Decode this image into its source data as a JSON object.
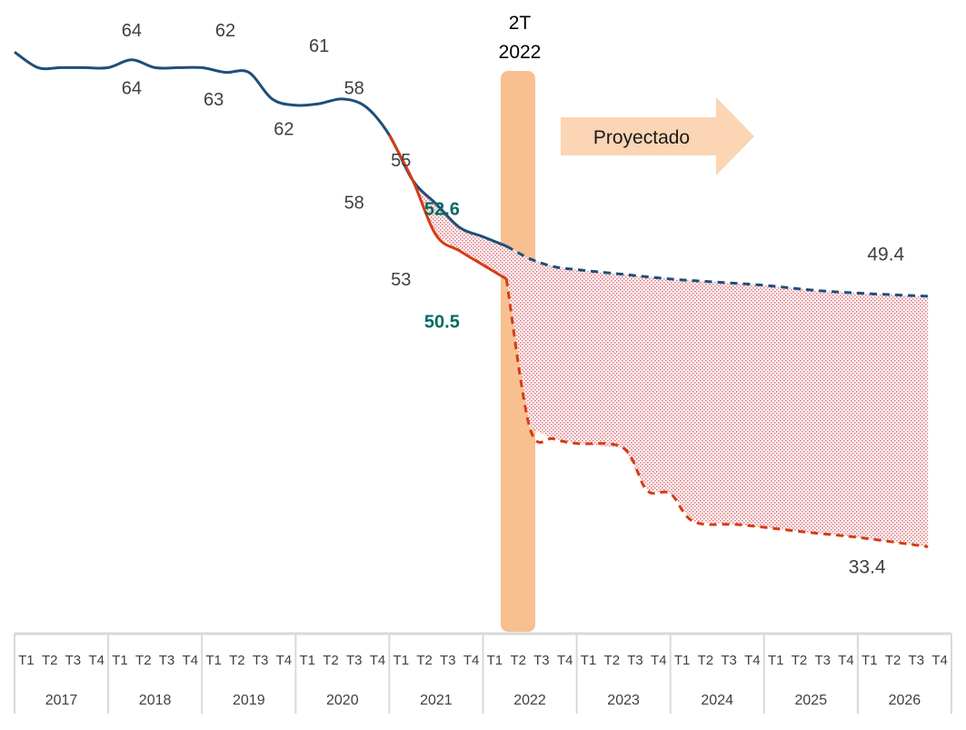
{
  "chart_data": {
    "type": "line",
    "x_years": [
      "2017",
      "2018",
      "2019",
      "2020",
      "2021",
      "2022",
      "2023",
      "2024",
      "2025",
      "2026"
    ],
    "x_quarters": [
      "T1",
      "T2",
      "T3",
      "T4"
    ],
    "ylim": [
      30,
      66
    ],
    "grid": false,
    "legend": "none",
    "highlight": {
      "label_line1": "2T",
      "label_line2": "2022",
      "year": "2022",
      "quarter": "T2"
    },
    "projection_label": "Proyectado",
    "series": [
      {
        "color": "#1f4e79",
        "actual": [
          [
            2017.0,
            65.0
          ],
          [
            2017.25,
            64.0
          ],
          [
            2017.5,
            64.0
          ],
          [
            2017.75,
            64.0
          ],
          [
            2018.0,
            64.0
          ],
          [
            2018.25,
            64.5
          ],
          [
            2018.5,
            64.0
          ],
          [
            2018.75,
            64.0
          ],
          [
            2019.0,
            64.0
          ],
          [
            2019.25,
            63.7
          ],
          [
            2019.5,
            63.7
          ],
          [
            2019.75,
            62.0
          ],
          [
            2020.0,
            61.6
          ],
          [
            2020.25,
            61.7
          ],
          [
            2020.5,
            62.0
          ],
          [
            2020.75,
            61.5
          ],
          [
            2021.0,
            59.7
          ],
          [
            2021.25,
            56.8
          ],
          [
            2021.5,
            55.3
          ],
          [
            2021.75,
            53.8
          ],
          [
            2022.0,
            53.2
          ],
          [
            2022.25,
            52.6
          ]
        ],
        "projected": [
          [
            2022.25,
            52.6
          ],
          [
            2022.5,
            51.8
          ],
          [
            2022.75,
            51.3
          ],
          [
            2023.0,
            51.1
          ],
          [
            2023.5,
            50.8
          ],
          [
            2024.0,
            50.5
          ],
          [
            2024.5,
            50.3
          ],
          [
            2025.0,
            50.1
          ],
          [
            2025.5,
            49.8
          ],
          [
            2026.0,
            49.6
          ],
          [
            2026.75,
            49.4
          ]
        ]
      },
      {
        "color": "#d73a12",
        "actual": [
          [
            2021.0,
            59.7
          ],
          [
            2021.25,
            56.8
          ],
          [
            2021.5,
            53.3
          ],
          [
            2021.75,
            52.3
          ],
          [
            2022.0,
            51.4
          ],
          [
            2022.25,
            50.5
          ]
        ],
        "projected": [
          [
            2022.25,
            50.5
          ],
          [
            2022.5,
            41.0
          ],
          [
            2022.75,
            40.3
          ],
          [
            2023.0,
            40.0
          ],
          [
            2023.5,
            39.7
          ],
          [
            2023.75,
            37.0
          ],
          [
            2024.0,
            36.8
          ],
          [
            2024.25,
            35.0
          ],
          [
            2024.75,
            34.8
          ],
          [
            2025.5,
            34.3
          ],
          [
            2026.0,
            34.0
          ],
          [
            2026.75,
            33.4
          ]
        ]
      }
    ],
    "annotations": [
      {
        "text": "64",
        "x": 2018.25,
        "y": 66.0,
        "style": "normal"
      },
      {
        "text": "62",
        "x": 2019.25,
        "y": 66.0,
        "style": "normal"
      },
      {
        "text": "61",
        "x": 2020.25,
        "y": 65.0,
        "style": "normal"
      },
      {
        "text": "64",
        "x": 2018.25,
        "y": 62.3,
        "style": "normal"
      },
      {
        "text": "63",
        "x": 2019.125,
        "y": 61.6,
        "style": "normal"
      },
      {
        "text": "62",
        "x": 2019.875,
        "y": 59.7,
        "style": "normal"
      },
      {
        "text": "58",
        "x": 2020.625,
        "y": 62.3,
        "style": "normal"
      },
      {
        "text": "58",
        "x": 2020.625,
        "y": 55.0,
        "style": "normal"
      },
      {
        "text": "55",
        "x": 2021.125,
        "y": 57.7,
        "style": "normal"
      },
      {
        "text": "53",
        "x": 2021.125,
        "y": 50.1,
        "style": "normal"
      },
      {
        "text": "52.6",
        "x": 2021.5625,
        "y": 54.6,
        "style": "strong"
      },
      {
        "text": "50.5",
        "x": 2021.5625,
        "y": 47.4,
        "style": "strong"
      },
      {
        "text": "49.4",
        "x": 2026.3,
        "y": 51.7,
        "style": "end"
      },
      {
        "text": "33.4",
        "x": 2026.1,
        "y": 31.7,
        "style": "end"
      }
    ]
  }
}
